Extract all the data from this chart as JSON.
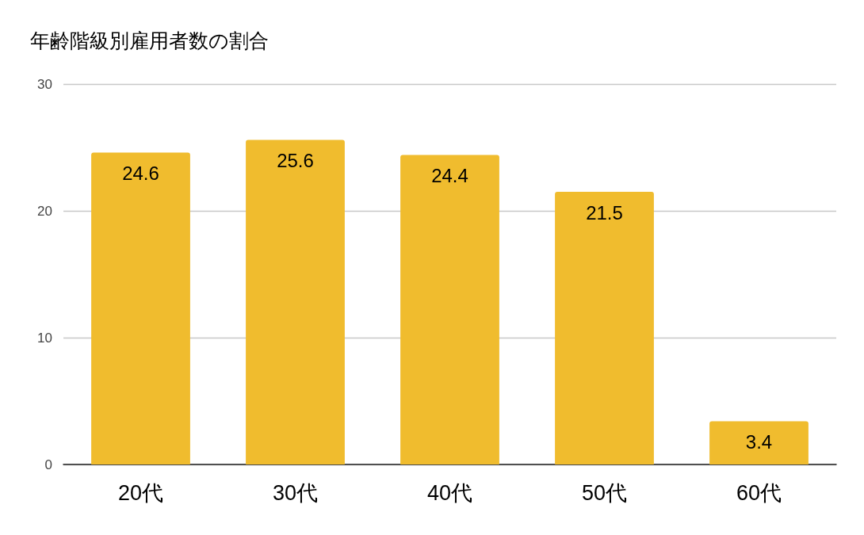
{
  "chart_data": {
    "type": "bar",
    "title": "年齢階級別雇用者数の割合",
    "categories": [
      "20代",
      "30代",
      "40代",
      "50代",
      "60代"
    ],
    "values": [
      24.6,
      25.6,
      24.4,
      21.5,
      3.4
    ],
    "color": "#f0bc2e",
    "ylim": [
      0,
      30
    ],
    "yticks": [
      0,
      10,
      20,
      30
    ],
    "grid": "y",
    "data_labels": true
  }
}
